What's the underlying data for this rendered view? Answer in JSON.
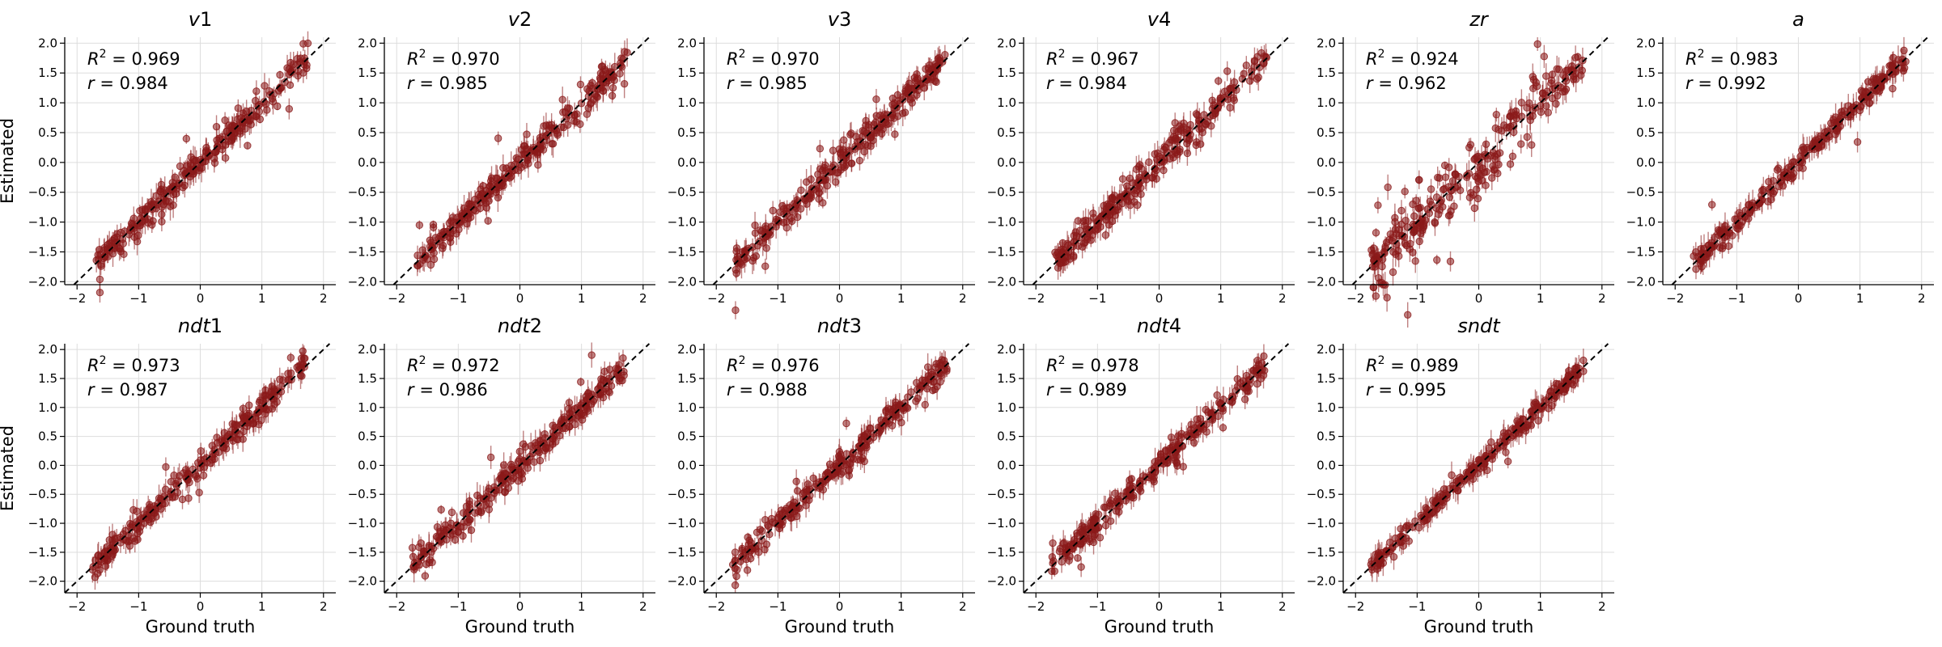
{
  "figure": {
    "xlabel": "Ground truth",
    "ylabel": "Estimated",
    "point_color": "#8b1a1a",
    "identity_line": "dashed black y = x"
  },
  "chart_data": [
    {
      "type": "scatter",
      "title": "v1",
      "title_italic": "v",
      "title_plain": "1",
      "r2": "0.969",
      "r": "0.984",
      "xlim": [
        -2.2,
        2.2
      ],
      "ylim": [
        -2.05,
        2.1
      ],
      "xticks": [
        -2,
        -1,
        0,
        1,
        2
      ],
      "yticks": [
        -2.0,
        -1.5,
        -1.0,
        -0.5,
        0.0,
        0.5,
        1.0,
        1.5,
        2.0
      ],
      "grid": true,
      "data_range": [
        -1.7,
        1.75
      ],
      "spread": 0.12
    },
    {
      "type": "scatter",
      "title": "v2",
      "title_italic": "v",
      "title_plain": "2",
      "r2": "0.970",
      "r": "0.985",
      "xlim": [
        -2.2,
        2.2
      ],
      "ylim": [
        -2.05,
        2.1
      ],
      "xticks": [
        -2,
        -1,
        0,
        1,
        2
      ],
      "yticks": [
        -2.0,
        -1.5,
        -1.0,
        -0.5,
        0.0,
        0.5,
        1.0,
        1.5,
        2.0
      ],
      "grid": true,
      "data_range": [
        -1.7,
        1.75
      ],
      "spread": 0.12
    },
    {
      "type": "scatter",
      "title": "v3",
      "title_italic": "v",
      "title_plain": "3",
      "r2": "0.970",
      "r": "0.985",
      "xlim": [
        -2.2,
        2.2
      ],
      "ylim": [
        -2.05,
        2.1
      ],
      "xticks": [
        -2,
        -1,
        0,
        1,
        2
      ],
      "yticks": [
        -2.0,
        -1.5,
        -1.0,
        -0.5,
        0.0,
        0.5,
        1.0,
        1.5,
        2.0
      ],
      "grid": true,
      "data_range": [
        -1.7,
        1.75
      ],
      "spread": 0.13
    },
    {
      "type": "scatter",
      "title": "v4",
      "title_italic": "v",
      "title_plain": "4",
      "r2": "0.967",
      "r": "0.984",
      "xlim": [
        -2.2,
        2.2
      ],
      "ylim": [
        -2.05,
        2.1
      ],
      "xticks": [
        -2,
        -1,
        0,
        1,
        2
      ],
      "yticks": [
        -2.0,
        -1.5,
        -1.0,
        -0.5,
        0.0,
        0.5,
        1.0,
        1.5,
        2.0
      ],
      "grid": true,
      "data_range": [
        -1.7,
        1.75
      ],
      "spread": 0.13
    },
    {
      "type": "scatter",
      "title": "zr",
      "title_italic": "zr",
      "title_plain": "",
      "r2": "0.924",
      "r": "0.962",
      "xlim": [
        -2.2,
        2.2
      ],
      "ylim": [
        -2.05,
        2.1
      ],
      "xticks": [
        -2,
        -1,
        0,
        1,
        2
      ],
      "yticks": [
        -2.0,
        -1.5,
        -1.0,
        -0.5,
        0.0,
        0.5,
        1.0,
        1.5,
        2.0
      ],
      "grid": true,
      "data_range": [
        -1.75,
        1.7
      ],
      "spread": 0.27
    },
    {
      "type": "scatter",
      "title": "a",
      "title_italic": "a",
      "title_plain": "",
      "r2": "0.983",
      "r": "0.992",
      "xlim": [
        -2.2,
        2.2
      ],
      "ylim": [
        -2.05,
        2.1
      ],
      "xticks": [
        -2,
        -1,
        0,
        1,
        2
      ],
      "yticks": [
        -2.0,
        -1.5,
        -1.0,
        -0.5,
        0.0,
        0.5,
        1.0,
        1.5,
        2.0
      ],
      "grid": true,
      "data_range": [
        -1.7,
        1.75
      ],
      "spread": 0.09
    },
    {
      "type": "scatter",
      "title": "ndt1",
      "title_italic": "ndt",
      "title_plain": "1",
      "r2": "0.973",
      "r": "0.987",
      "xlim": [
        -2.2,
        2.2
      ],
      "ylim": [
        -2.2,
        2.1
      ],
      "xticks": [
        -2,
        -1,
        0,
        1,
        2
      ],
      "yticks": [
        -2.0,
        -1.5,
        -1.0,
        -0.5,
        0.0,
        0.5,
        1.0,
        1.5,
        2.0
      ],
      "grid": true,
      "data_range": [
        -1.75,
        1.7
      ],
      "spread": 0.12
    },
    {
      "type": "scatter",
      "title": "ndt2",
      "title_italic": "ndt",
      "title_plain": "2",
      "r2": "0.972",
      "r": "0.986",
      "xlim": [
        -2.2,
        2.2
      ],
      "ylim": [
        -2.2,
        2.1
      ],
      "xticks": [
        -2,
        -1,
        0,
        1,
        2
      ],
      "yticks": [
        -2.0,
        -1.5,
        -1.0,
        -0.5,
        0.0,
        0.5,
        1.0,
        1.5,
        2.0
      ],
      "grid": true,
      "data_range": [
        -1.75,
        1.7
      ],
      "spread": 0.12
    },
    {
      "type": "scatter",
      "title": "ndt3",
      "title_italic": "ndt",
      "title_plain": "3",
      "r2": "0.976",
      "r": "0.988",
      "xlim": [
        -2.2,
        2.2
      ],
      "ylim": [
        -2.2,
        2.1
      ],
      "xticks": [
        -2,
        -1,
        0,
        1,
        2
      ],
      "yticks": [
        -2.0,
        -1.5,
        -1.0,
        -0.5,
        0.0,
        0.5,
        1.0,
        1.5,
        2.0
      ],
      "grid": true,
      "data_range": [
        -1.75,
        1.75
      ],
      "spread": 0.11
    },
    {
      "type": "scatter",
      "title": "ndt4",
      "title_italic": "ndt",
      "title_plain": "4",
      "r2": "0.978",
      "r": "0.989",
      "xlim": [
        -2.2,
        2.2
      ],
      "ylim": [
        -2.2,
        2.1
      ],
      "xticks": [
        -2,
        -1,
        0,
        1,
        2
      ],
      "yticks": [
        -2.0,
        -1.5,
        -1.0,
        -0.5,
        0.0,
        0.5,
        1.0,
        1.5,
        2.0
      ],
      "grid": true,
      "data_range": [
        -1.75,
        1.75
      ],
      "spread": 0.11
    },
    {
      "type": "scatter",
      "title": "sndt",
      "title_italic": "sndt",
      "title_plain": "",
      "r2": "0.989",
      "r": "0.995",
      "xlim": [
        -2.2,
        2.2
      ],
      "ylim": [
        -2.2,
        2.1
      ],
      "xticks": [
        -2,
        -1,
        0,
        1,
        2
      ],
      "yticks": [
        -2.0,
        -1.5,
        -1.0,
        -0.5,
        0.0,
        0.5,
        1.0,
        1.5,
        2.0
      ],
      "grid": true,
      "data_range": [
        -1.75,
        1.7
      ],
      "spread": 0.08
    }
  ]
}
